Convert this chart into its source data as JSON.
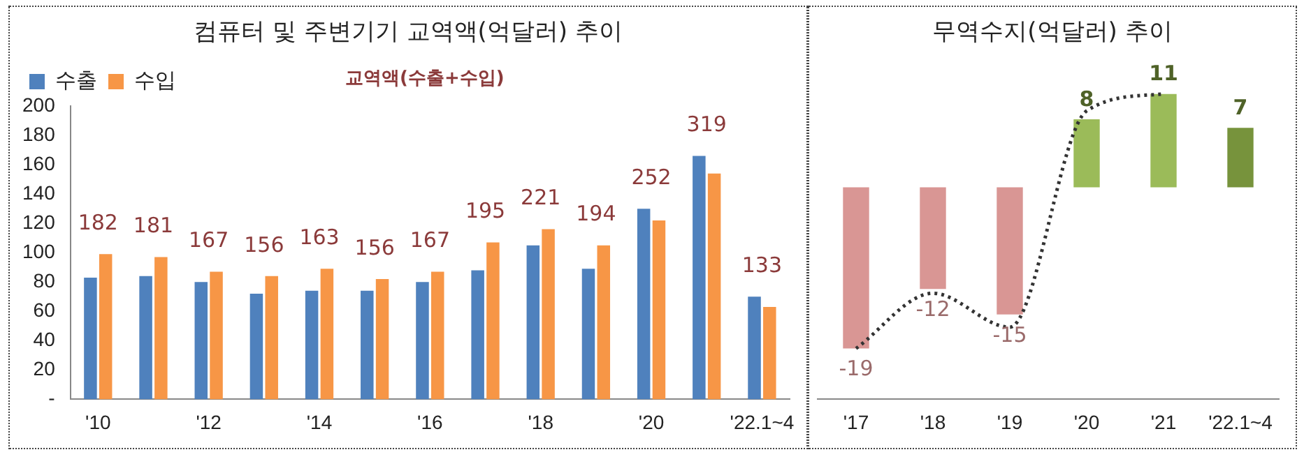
{
  "chart_data": [
    {
      "type": "bar",
      "title": "컴퓨터 및 주변기기 교역액(억달러) 추이",
      "categories": [
        "'10",
        null,
        "'12",
        null,
        "'14",
        null,
        "'16",
        null,
        "'18",
        null,
        "'20",
        null,
        "'22.1~4"
      ],
      "series": [
        {
          "name": "수출",
          "color": "#4f81bd",
          "values": [
            83,
            84,
            80,
            72,
            74,
            74,
            80,
            88,
            105,
            89,
            130,
            166,
            70
          ]
        },
        {
          "name": "수입",
          "color": "#f79646",
          "values": [
            99,
            97,
            87,
            84,
            89,
            82,
            87,
            107,
            116,
            105,
            122,
            154,
            63
          ]
        }
      ],
      "totals": [
        "182",
        "181",
        "167",
        "156",
        "163",
        "156",
        "167",
        "195",
        "221",
        "194",
        "252",
        "319",
        "133"
      ],
      "annotations": [
        "교역액(수출+수입)"
      ],
      "ylim": [
        0,
        200
      ],
      "yticks": [
        {
          "value": 0,
          "label": "-"
        },
        20,
        40,
        60,
        80,
        100,
        120,
        140,
        160,
        180,
        200
      ],
      "grid": false,
      "legend": "top left"
    },
    {
      "type": "bar",
      "title": "무역수지(억달러) 추이",
      "categories": [
        "'17",
        "'18",
        "'19",
        "'20",
        "'21",
        "'22.1~4"
      ],
      "series": [
        {
          "colors": [
            "#d99694",
            "#d99694",
            "#d99694",
            "#9bbb59",
            "#9bbb59",
            "#77933c"
          ],
          "values": [
            -19,
            -12,
            -15,
            8,
            11,
            7
          ],
          "value_labels": [
            "-19",
            "-12",
            "-15",
            "8",
            "11",
            "7"
          ]
        },
        {
          "type": "line",
          "color": "#333333",
          "line_style": "dotted",
          "values": [
            -19,
            -12.5,
            -16.5,
            9,
            11,
            null
          ]
        }
      ],
      "tick_labels": "x",
      "legend": false
    }
  ]
}
